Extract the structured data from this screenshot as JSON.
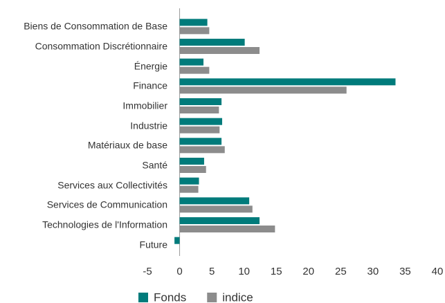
{
  "chart_data": {
    "type": "bar",
    "orientation": "horizontal",
    "categories": [
      "Biens de Consommation de Base",
      "Consommation Discrétionnaire",
      "Énergie",
      "Finance",
      "Immobilier",
      "Industrie",
      "Matériaux de base",
      "Santé",
      "Services aux Collectivités",
      "Services de Communication",
      "Technologies de l'Information",
      "Future"
    ],
    "series": [
      {
        "name": "Fonds",
        "color": "#007b7b",
        "values": [
          4.3,
          10.1,
          3.7,
          33.5,
          6.5,
          6.6,
          6.5,
          3.8,
          3.0,
          10.8,
          12.4,
          -0.8
        ]
      },
      {
        "name": "indice",
        "color": "#8c8c8c",
        "values": [
          4.6,
          12.4,
          4.6,
          25.9,
          6.1,
          6.2,
          7.0,
          4.1,
          2.9,
          11.3,
          14.8,
          null
        ]
      }
    ],
    "xlim": [
      -5,
      40
    ],
    "xticks": [
      -5,
      0,
      5,
      10,
      15,
      20,
      25,
      30,
      35,
      40
    ],
    "grid": false,
    "legend": "bottom"
  }
}
